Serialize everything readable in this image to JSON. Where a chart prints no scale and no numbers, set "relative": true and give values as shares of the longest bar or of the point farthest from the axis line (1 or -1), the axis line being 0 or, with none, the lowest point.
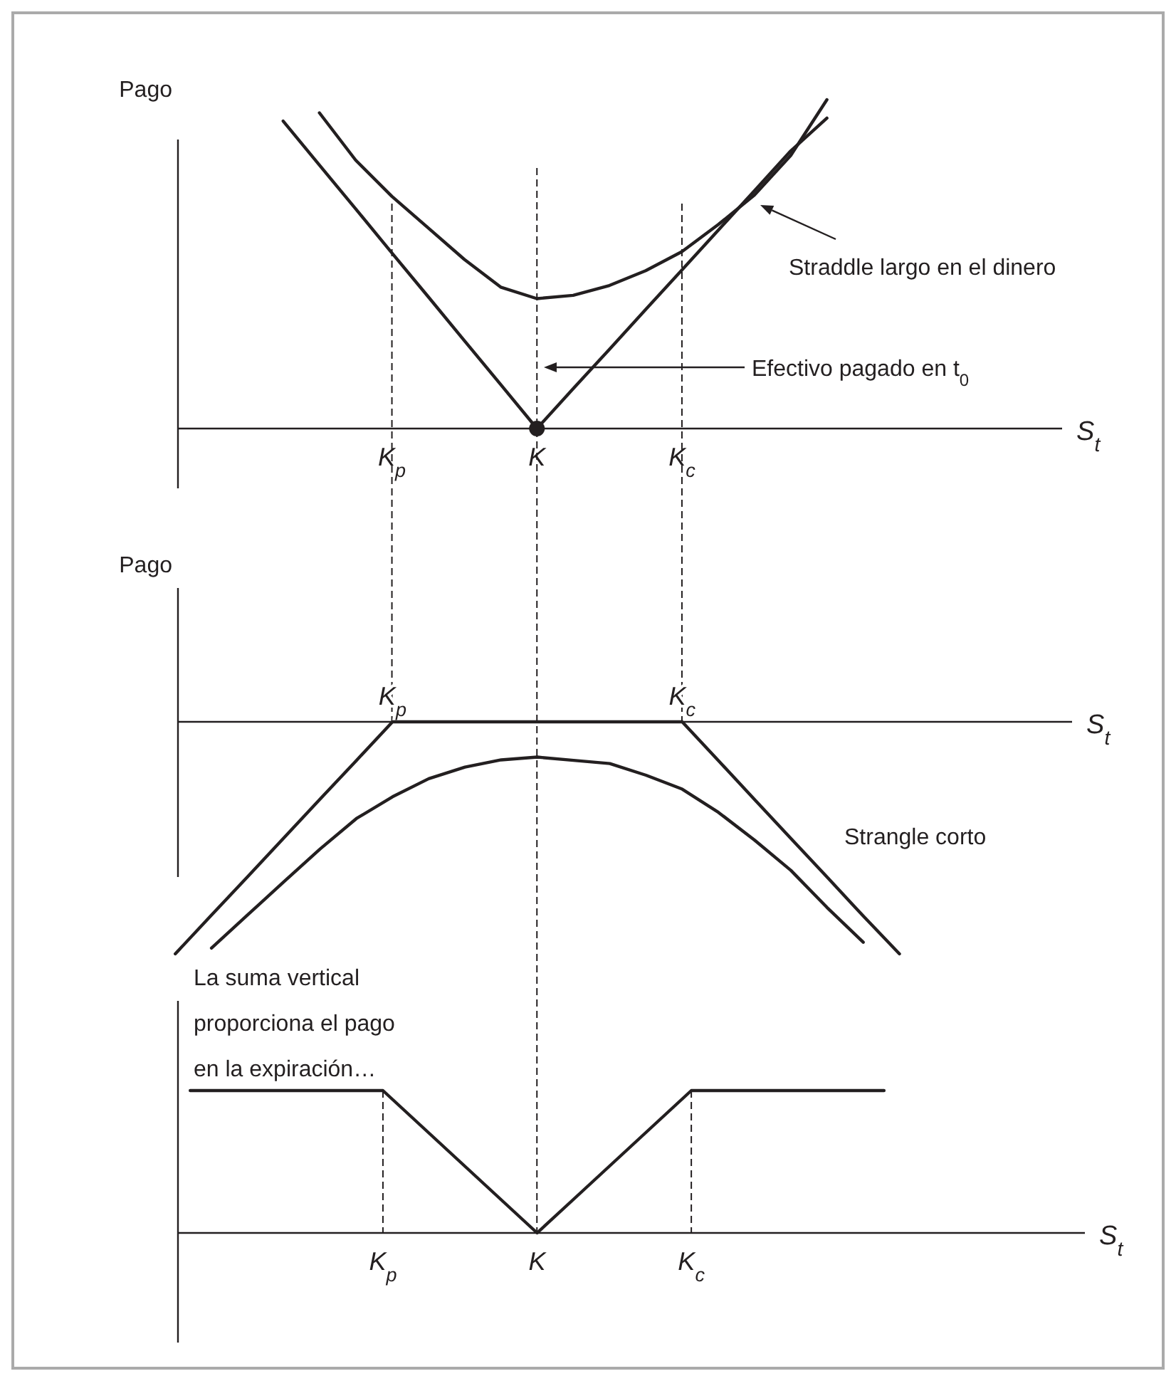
{
  "chart_data": [
    {
      "type": "line",
      "relative": true,
      "ylabel": "Pago",
      "xlabel": "S$_{t}$",
      "categories": [
        null,
        null,
        null,
        null,
        null,
        null,
        "K$_{p}$",
        null,
        null,
        null,
        "K",
        null,
        null,
        null,
        "K$_{c}$",
        null,
        null,
        null,
        null,
        null,
        null,
        null,
        null,
        null,
        null
      ],
      "series": [
        {
          "color": "#231f20",
          "values": [
            null,
            null,
            null,
            0.935,
            0.801,
            0.668,
            0.534,
            0.401,
            0.267,
            0.134,
            0,
            0.121,
            0.241,
            0.362,
            0.482,
            0.603,
            0.723,
            0.844,
            0.944,
            null,
            null,
            null,
            null,
            null,
            null
          ]
        },
        {
          "color": "#231f20",
          "values": [
            null,
            null,
            null,
            null,
            0.96,
            0.816,
            0.706,
            0.61,
            0.514,
            0.43,
            0.395,
            0.405,
            0.435,
            0.48,
            0.538,
            0.62,
            0.71,
            0.83,
            1.0,
            null,
            null,
            null,
            null,
            null,
            null
          ]
        },
        {
          "type": "scatter",
          "marker": "circle",
          "color": "#231f20",
          "values": [
            null,
            null,
            null,
            null,
            null,
            null,
            null,
            null,
            null,
            null,
            0,
            null,
            null,
            null,
            null,
            null,
            null,
            null,
            null,
            null,
            null,
            null,
            null,
            null,
            null
          ]
        }
      ],
      "ref_lines": [
        {
          "axis": "x",
          "value": "K$_{p}$",
          "line_style": "dashed"
        },
        {
          "axis": "x",
          "value": "K",
          "line_style": "dashed"
        },
        {
          "axis": "x",
          "value": "K$_{c}$",
          "line_style": "dashed"
        }
      ],
      "annotations": [
        "Straddle largo en el dinero",
        "Efectivo pagado en t$_{0}$"
      ]
    },
    {
      "type": "line",
      "relative": true,
      "ylabel": "Pago",
      "xlabel": "S$_{t}$",
      "categories": [
        null,
        null,
        null,
        null,
        null,
        null,
        "K$_{p}$",
        null,
        null,
        null,
        null,
        null,
        null,
        null,
        "K$_{c}$",
        null,
        null,
        null,
        null,
        null,
        null,
        null,
        null,
        null,
        null
      ],
      "series": [
        {
          "color": "#231f20",
          "values": [
            -1,
            -0.833,
            -0.667,
            -0.5,
            -0.333,
            -0.167,
            0,
            0,
            0,
            0,
            0,
            0,
            0,
            0,
            0,
            -0.167,
            -0.335,
            -0.502,
            -0.669,
            -0.837,
            -1,
            null,
            null,
            null,
            null
          ]
        },
        {
          "color": "#231f20",
          "values": [
            null,
            -0.975,
            -0.832,
            -0.689,
            -0.548,
            -0.417,
            -0.323,
            -0.245,
            -0.195,
            -0.164,
            -0.152,
            -0.166,
            -0.18,
            -0.23,
            -0.29,
            -0.39,
            -0.51,
            -0.64,
            -0.8,
            -0.95,
            null,
            null,
            null,
            null,
            null
          ]
        }
      ],
      "annotations": [
        "Strangle corto"
      ]
    },
    {
      "type": "line",
      "relative": true,
      "xlabel": "S$_{t}$",
      "categories": [
        null,
        null,
        null,
        null,
        null,
        "K$_{p}$",
        null,
        null,
        null,
        "K",
        null,
        null,
        null,
        "K$_{c}$",
        null,
        null,
        null,
        null,
        null,
        null,
        null,
        null,
        null,
        null
      ],
      "series": [
        {
          "color": "#231f20",
          "values": [
            1,
            1,
            1,
            1,
            1,
            1,
            0.75,
            0.5,
            0.25,
            0,
            0.25,
            0.5,
            0.75,
            1,
            1,
            1,
            1,
            1,
            1,
            null,
            null,
            null,
            null,
            null
          ]
        }
      ],
      "ref_lines": [
        {
          "axis": "x",
          "value": "K$_{p}$",
          "line_style": "dashed"
        },
        {
          "axis": "x",
          "value": "K$_{c}$",
          "line_style": "dashed"
        }
      ],
      "annotations": [
        "La suma vertical proporciona el pago en la expiración…"
      ]
    }
  ]
}
